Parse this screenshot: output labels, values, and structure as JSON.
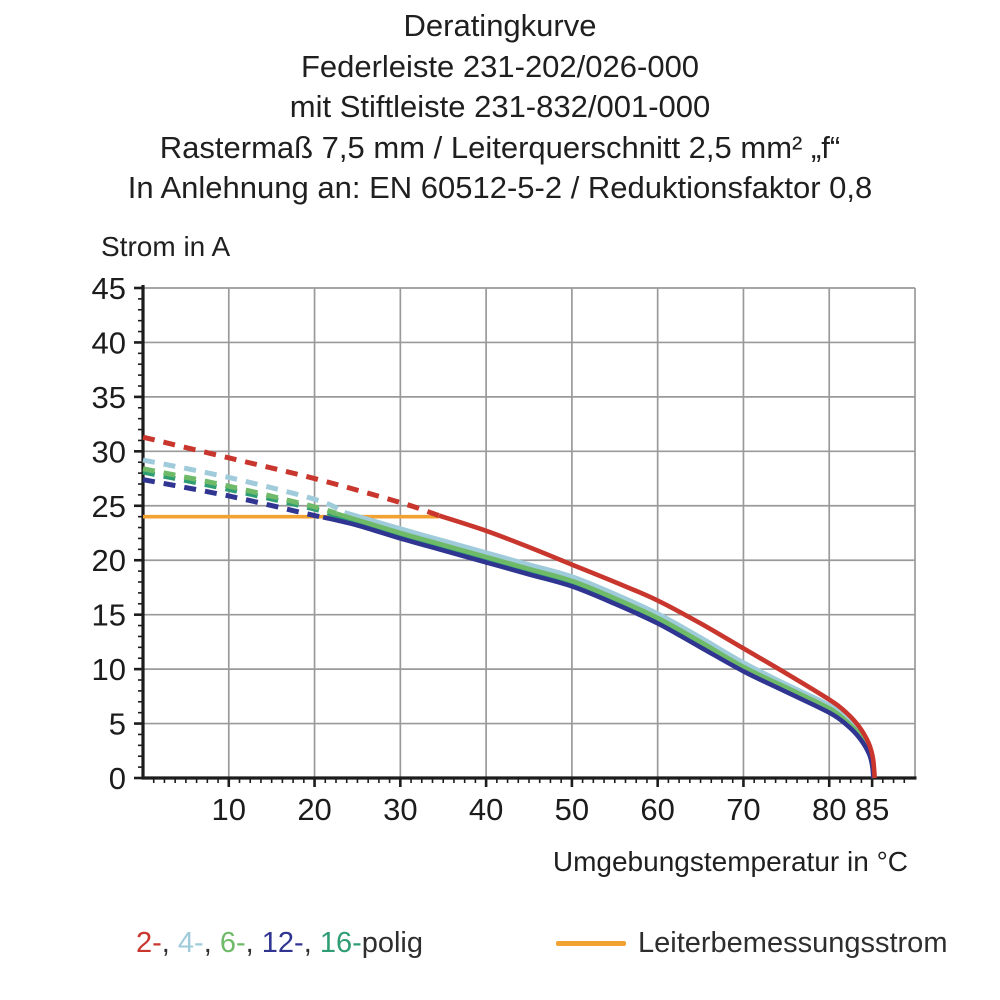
{
  "header": {
    "lines": [
      "Deratingkurve",
      "Federleiste 231-202/026-000",
      "mit Stiftleiste 231-832/001-000",
      "Rastermaß 7,5 mm / Leiterquerschnitt 2,5 mm² „f“",
      "In Anlehnung an: EN 60512-5-2 / Reduktionsfaktor 0,8"
    ]
  },
  "chart_data": {
    "type": "line",
    "title": "Deratingkurve",
    "xlabel": "Umgebungstemperatur in °C",
    "ylabel": "Strom in A",
    "xlim": [
      0,
      90
    ],
    "ylim": [
      0,
      45
    ],
    "x_major_ticks": [
      10,
      20,
      30,
      40,
      50,
      60,
      70,
      80,
      85
    ],
    "x_tick_labels": [
      "10",
      "20",
      "30",
      "40",
      "50",
      "60",
      "70",
      "80",
      "85"
    ],
    "y_major_ticks": [
      0,
      5,
      10,
      15,
      20,
      25,
      30,
      35,
      40,
      45
    ],
    "y_tick_labels": [
      "0",
      "5",
      "10",
      "15",
      "20",
      "25",
      "30",
      "35",
      "40",
      "45"
    ],
    "x_gridlines": [
      10,
      20,
      30,
      40,
      50,
      60,
      70,
      80,
      90
    ],
    "y_gridlines": [
      5,
      10,
      15,
      20,
      25,
      30,
      35,
      40,
      45
    ],
    "x_minor_step": 1.25,
    "y_minor_step": 1,
    "grid_on": true,
    "grid_color": "#9a9a9a",
    "axis_color": "#1c1c1c",
    "rated_line": {
      "name": "Leiterbemessungsstrom",
      "color": "#f2a231",
      "current_a": 24,
      "x_start": 0,
      "x_end": 34.5
    },
    "series": [
      {
        "name": "16-polig",
        "color": "#2f9d73",
        "dashed": [
          [
            0,
            28.1
          ],
          [
            10,
            26.5
          ],
          [
            20,
            24.7
          ],
          [
            22,
            24.2
          ]
        ],
        "solid": [
          [
            22,
            24.2
          ],
          [
            30,
            22.3
          ],
          [
            35,
            21.2
          ],
          [
            40,
            20.1
          ],
          [
            45,
            19.0
          ],
          [
            50,
            17.9
          ],
          [
            55,
            16.3
          ],
          [
            60,
            14.5
          ],
          [
            65,
            12.3
          ],
          [
            70,
            10.1
          ],
          [
            75,
            8.2
          ],
          [
            80,
            6.2
          ],
          [
            82,
            5.1
          ],
          [
            83.5,
            3.9
          ],
          [
            84.6,
            2.5
          ],
          [
            85,
            1.3
          ],
          [
            85.2,
            0
          ]
        ]
      },
      {
        "name": "4-polig",
        "color": "#9fcbdb",
        "dashed": [
          [
            0,
            29.2
          ],
          [
            10,
            27.6
          ],
          [
            20,
            25.6
          ],
          [
            23.5,
            24.4
          ]
        ],
        "solid": [
          [
            23.5,
            24.4
          ],
          [
            30,
            22.9
          ],
          [
            35,
            21.8
          ],
          [
            40,
            20.7
          ],
          [
            45,
            19.6
          ],
          [
            50,
            18.5
          ],
          [
            55,
            16.9
          ],
          [
            60,
            15.1
          ],
          [
            65,
            12.9
          ],
          [
            70,
            10.6
          ],
          [
            75,
            8.6
          ],
          [
            80,
            6.7
          ],
          [
            82,
            5.5
          ],
          [
            83.5,
            4.2
          ],
          [
            84.6,
            2.8
          ],
          [
            85.05,
            1.5
          ],
          [
            85.25,
            0
          ]
        ]
      },
      {
        "name": "6-polig",
        "color": "#6fba68",
        "dashed": [
          [
            0,
            28.4
          ],
          [
            10,
            26.8
          ],
          [
            20,
            24.9
          ],
          [
            22.5,
            24.3
          ]
        ],
        "solid": [
          [
            22.5,
            24.3
          ],
          [
            30,
            22.5
          ],
          [
            35,
            21.4
          ],
          [
            40,
            20.3
          ],
          [
            45,
            19.2
          ],
          [
            50,
            18.1
          ],
          [
            55,
            16.5
          ],
          [
            60,
            14.7
          ],
          [
            65,
            12.5
          ],
          [
            70,
            10.2
          ],
          [
            75,
            8.3
          ],
          [
            80,
            6.4
          ],
          [
            82,
            5.2
          ],
          [
            83.5,
            4.0
          ],
          [
            84.6,
            2.6
          ],
          [
            85,
            1.4
          ],
          [
            85.2,
            0
          ]
        ]
      },
      {
        "name": "12-polig",
        "color": "#2f3590",
        "dashed": [
          [
            0,
            27.4
          ],
          [
            10,
            25.9
          ],
          [
            20,
            24.1
          ],
          [
            21,
            23.95
          ]
        ],
        "solid": [
          [
            21,
            23.95
          ],
          [
            25,
            23.2
          ],
          [
            30,
            22.0
          ],
          [
            35,
            20.9
          ],
          [
            40,
            19.8
          ],
          [
            45,
            18.7
          ],
          [
            50,
            17.6
          ],
          [
            55,
            16.0
          ],
          [
            60,
            14.2
          ],
          [
            65,
            12.0
          ],
          [
            70,
            9.8
          ],
          [
            75,
            7.9
          ],
          [
            80,
            6.0
          ],
          [
            82,
            4.9
          ],
          [
            83.5,
            3.7
          ],
          [
            84.6,
            2.3
          ],
          [
            85,
            1.2
          ],
          [
            85.15,
            0
          ]
        ]
      },
      {
        "name": "2-polig",
        "color": "#c9362d",
        "dashed": [
          [
            0,
            31.3
          ],
          [
            10,
            29.4
          ],
          [
            20,
            27.5
          ],
          [
            30,
            25.3
          ],
          [
            34.5,
            24.1
          ]
        ],
        "solid": [
          [
            34.5,
            24.1
          ],
          [
            40,
            22.7
          ],
          [
            45,
            21.2
          ],
          [
            50,
            19.6
          ],
          [
            55,
            18.0
          ],
          [
            60,
            16.3
          ],
          [
            65,
            14.2
          ],
          [
            70,
            11.9
          ],
          [
            75,
            9.6
          ],
          [
            80,
            7.2
          ],
          [
            82,
            6.0
          ],
          [
            83.5,
            4.7
          ],
          [
            84.6,
            3.2
          ],
          [
            85.1,
            1.8
          ],
          [
            85.3,
            0
          ]
        ]
      }
    ]
  },
  "legend": {
    "poles": [
      {
        "label": "2-",
        "color": "#c9362d"
      },
      {
        "label": "4-",
        "color": "#9fcbdb"
      },
      {
        "label": "6-",
        "color": "#6fba68"
      },
      {
        "label": "12-",
        "color": "#2f3590"
      },
      {
        "label": "16-",
        "color": "#2f9d73"
      }
    ],
    "separator": ", ",
    "suffix": "polig",
    "text_color": "#2e2e2e",
    "rated_label": "Leiterbemessungsstrom",
    "rated_color": "#f2a231"
  }
}
